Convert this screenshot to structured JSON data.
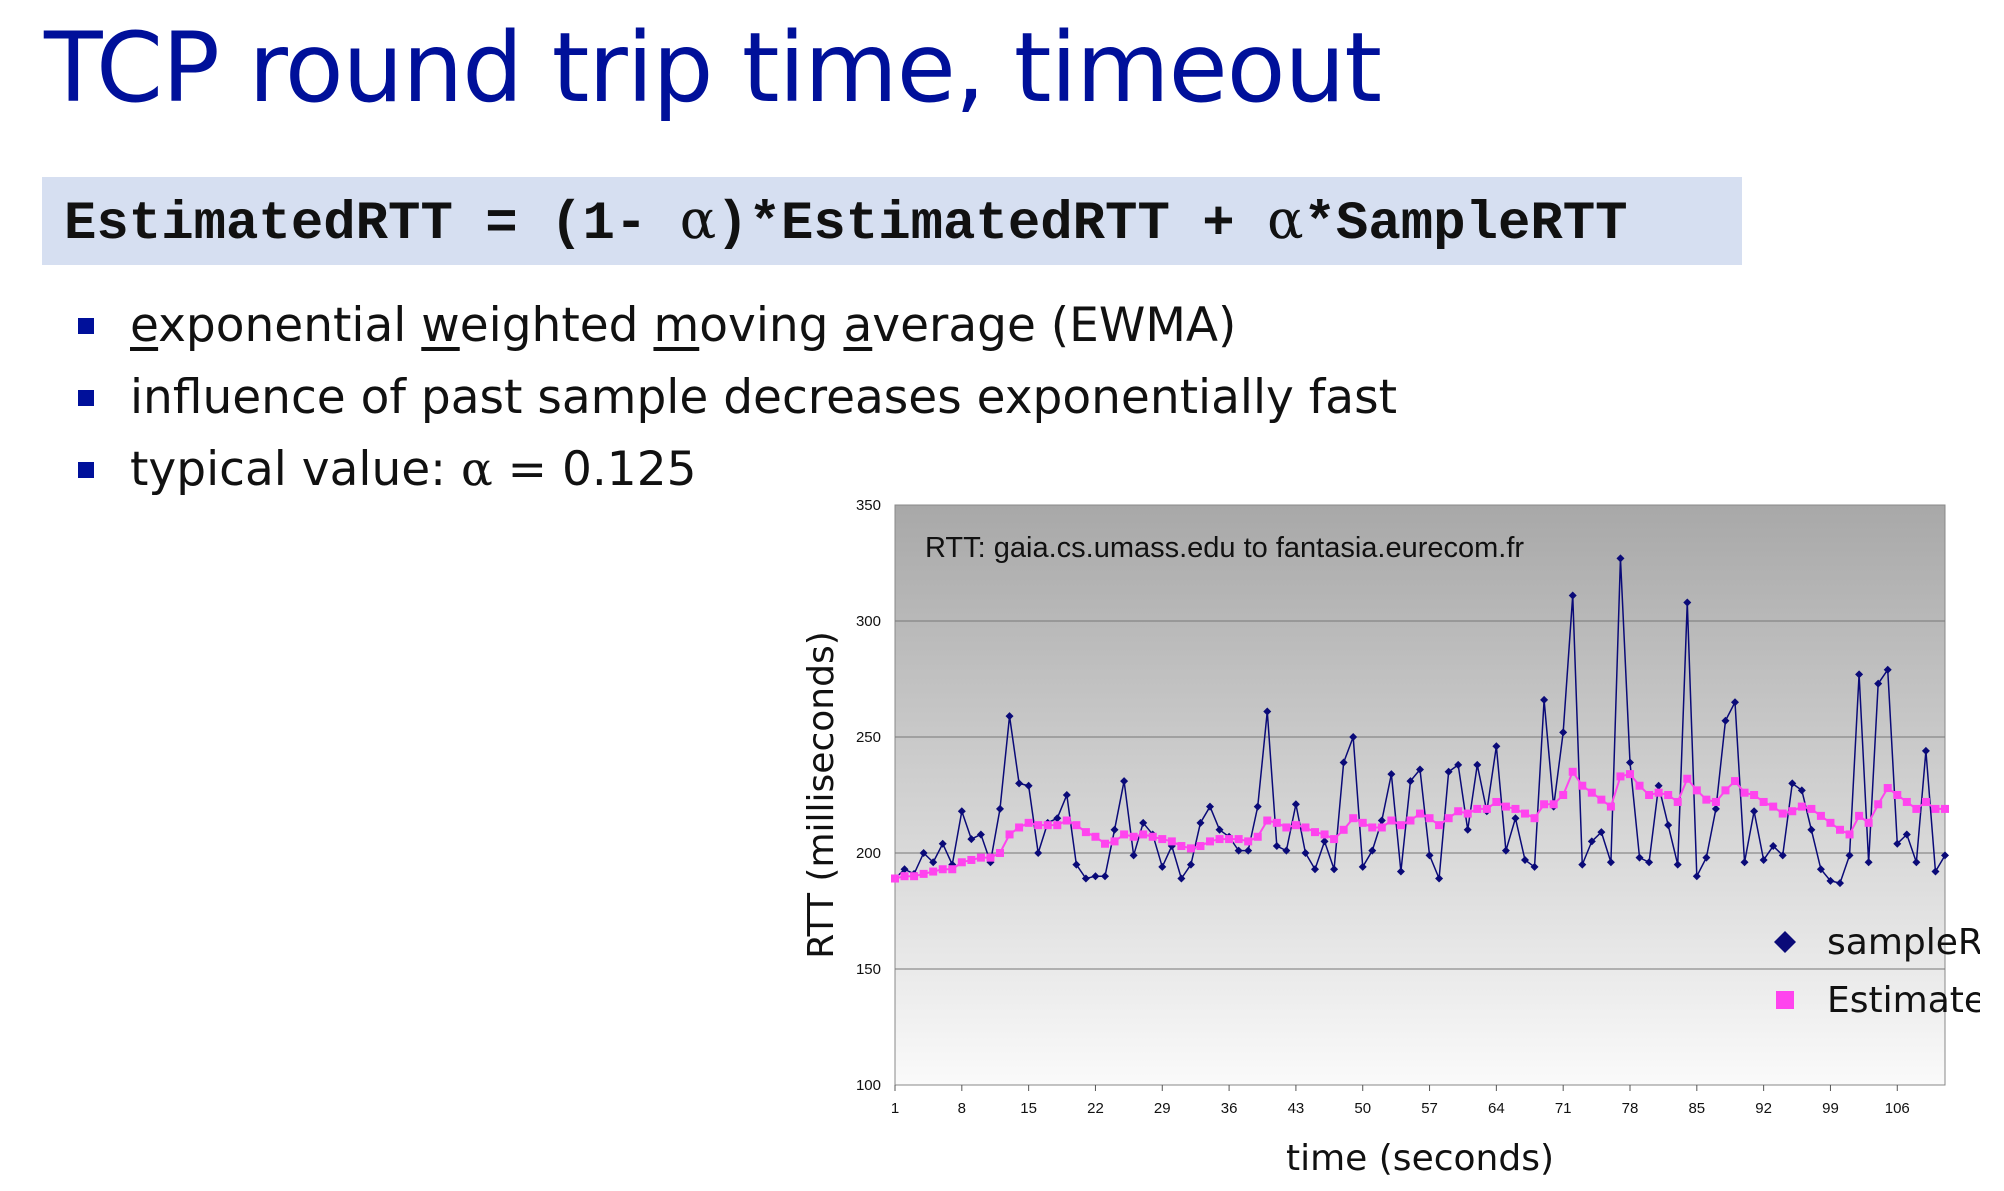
{
  "slide": {
    "title": "TCP round trip time, timeout",
    "formula": {
      "part1": "EstimatedRTT = (1- ",
      "alpha1": "α",
      "part2": ")*EstimatedRTT + ",
      "alpha2": "α",
      "part3": "*SampleRTT"
    },
    "bullets": [
      {
        "segments": [
          {
            "text": "e",
            "u": true
          },
          {
            "text": "xponential ",
            "u": false
          },
          {
            "text": "w",
            "u": true
          },
          {
            "text": "eighted ",
            "u": false
          },
          {
            "text": "m",
            "u": true
          },
          {
            "text": "oving ",
            "u": false
          },
          {
            "text": "a",
            "u": true
          },
          {
            "text": "verage (EWMA)",
            "u": false
          }
        ]
      },
      {
        "segments": [
          {
            "text": "influence of past sample decreases exponentially fast",
            "u": false
          }
        ]
      },
      {
        "segments": [
          {
            "text": "typical value: ",
            "u": false
          },
          {
            "text": "α",
            "u": false,
            "alpha": true
          },
          {
            "text": " = 0.125",
            "u": false
          }
        ]
      }
    ]
  },
  "chart_data": {
    "type": "line",
    "annotation": "RTT: gaia.cs.umass.edu to fantasia.eurecom.fr",
    "xlabel": "time (seconds)",
    "ylabel": "RTT (milliseconds)",
    "ylim": [
      100,
      350
    ],
    "yticks": [
      100,
      150,
      200,
      250,
      300,
      350
    ],
    "xticks": [
      1,
      8,
      15,
      22,
      29,
      36,
      43,
      50,
      57,
      64,
      71,
      78,
      85,
      92,
      99,
      106
    ],
    "xlim": [
      1,
      111
    ],
    "grid": "horizontal",
    "plot_background": "gradient-gray",
    "legend_position": "bottom-right",
    "series": [
      {
        "name": "sampleRTT",
        "color": "#0a0a78",
        "marker": "diamond",
        "x": [
          1,
          2,
          3,
          4,
          5,
          6,
          7,
          8,
          9,
          10,
          11,
          12,
          13,
          14,
          15,
          16,
          17,
          18,
          19,
          20,
          21,
          22,
          23,
          24,
          25,
          26,
          27,
          28,
          29,
          30,
          31,
          32,
          33,
          34,
          35,
          36,
          37,
          38,
          39,
          40,
          41,
          42,
          43,
          44,
          45,
          46,
          47,
          48,
          49,
          50,
          51,
          52,
          53,
          54,
          55,
          56,
          57,
          58,
          59,
          60,
          61,
          62,
          63,
          64,
          65,
          66,
          67,
          68,
          69,
          70,
          71,
          72,
          73,
          74,
          75,
          76,
          77,
          78,
          79,
          80,
          81,
          82,
          83,
          84,
          85,
          86,
          87,
          88,
          89,
          90,
          91,
          92,
          93,
          94,
          95,
          96,
          97,
          98,
          99,
          100,
          101,
          102,
          103,
          104,
          105,
          106,
          107,
          108,
          109,
          110,
          111
        ],
        "values": [
          189,
          193,
          191,
          200,
          196,
          204,
          195,
          218,
          206,
          208,
          196,
          219,
          259,
          230,
          229,
          200,
          213,
          215,
          225,
          195,
          189,
          190,
          190,
          210,
          231,
          199,
          213,
          208,
          194,
          203,
          189,
          195,
          213,
          220,
          210,
          207,
          201,
          201,
          220,
          261,
          203,
          201,
          221,
          200,
          193,
          205,
          193,
          239,
          250,
          194,
          201,
          214,
          234,
          192,
          231,
          236,
          199,
          189,
          235,
          238,
          210,
          238,
          218,
          246,
          201,
          215,
          197,
          194,
          266,
          220,
          252,
          311,
          195,
          205,
          209,
          196,
          327,
          239,
          198,
          196,
          229,
          212,
          195,
          308,
          190,
          198,
          219,
          257,
          265,
          196,
          218,
          197,
          203,
          199,
          230,
          227,
          210,
          193,
          188,
          187,
          199,
          277,
          196,
          273,
          279,
          204,
          208,
          196,
          244,
          192,
          199
        ]
      },
      {
        "name": "EstimatedRTT",
        "color": "#ff44ee",
        "marker": "square",
        "x": [
          1,
          2,
          3,
          4,
          5,
          6,
          7,
          8,
          9,
          10,
          11,
          12,
          13,
          14,
          15,
          16,
          17,
          18,
          19,
          20,
          21,
          22,
          23,
          24,
          25,
          26,
          27,
          28,
          29,
          30,
          31,
          32,
          33,
          34,
          35,
          36,
          37,
          38,
          39,
          40,
          41,
          42,
          43,
          44,
          45,
          46,
          47,
          48,
          49,
          50,
          51,
          52,
          53,
          54,
          55,
          56,
          57,
          58,
          59,
          60,
          61,
          62,
          63,
          64,
          65,
          66,
          67,
          68,
          69,
          70,
          71,
          72,
          73,
          74,
          75,
          76,
          77,
          78,
          79,
          80,
          81,
          82,
          83,
          84,
          85,
          86,
          87,
          88,
          89,
          90,
          91,
          92,
          93,
          94,
          95,
          96,
          97,
          98,
          99,
          100,
          101,
          102,
          103,
          104,
          105,
          106,
          107,
          108,
          109,
          110,
          111
        ],
        "values": [
          189,
          190,
          190,
          191,
          192,
          193,
          193,
          196,
          197,
          198,
          198,
          200,
          208,
          211,
          213,
          212,
          212,
          212,
          214,
          212,
          209,
          207,
          204,
          205,
          208,
          207,
          208,
          207,
          206,
          205,
          203,
          202,
          203,
          205,
          206,
          206,
          206,
          205,
          207,
          214,
          213,
          211,
          212,
          211,
          209,
          208,
          206,
          210,
          215,
          213,
          211,
          211,
          214,
          212,
          214,
          217,
          215,
          212,
          215,
          218,
          217,
          219,
          219,
          222,
          220,
          219,
          217,
          215,
          221,
          221,
          225,
          235,
          229,
          226,
          223,
          220,
          233,
          234,
          229,
          225,
          226,
          225,
          222,
          232,
          227,
          223,
          222,
          227,
          231,
          226,
          225,
          222,
          220,
          217,
          218,
          220,
          219,
          216,
          213,
          210,
          208,
          216,
          213,
          221,
          228,
          225,
          222,
          219,
          222,
          219,
          219
        ]
      }
    ]
  }
}
